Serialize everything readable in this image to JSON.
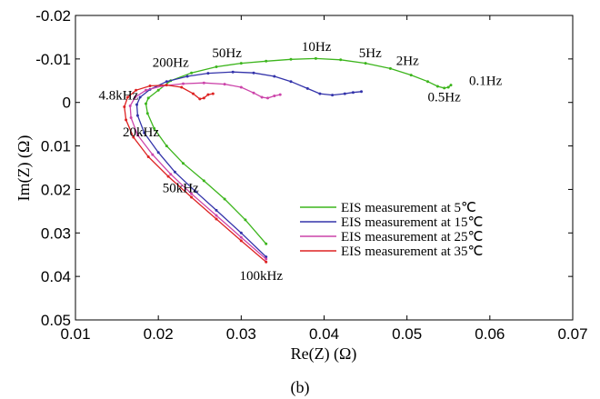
{
  "chart_data": {
    "type": "line",
    "caption": "(b)",
    "xlabel": "Re(Z) (Ω)",
    "ylabel": "Im(Z) (Ω)",
    "xlim": [
      0.01,
      0.07
    ],
    "ylim": [
      -0.02,
      0.05
    ],
    "y_reversed": true,
    "grid": false,
    "legend_position": "lower-right inside",
    "xticks": [
      "0.01",
      "0.02",
      "0.03",
      "0.04",
      "0.05",
      "0.06",
      "0.07"
    ],
    "yticks": [
      "-0.02",
      "-0.01",
      "0",
      "0.01",
      "0.02",
      "0.03",
      "0.04",
      "0.05"
    ],
    "series": [
      {
        "name": "EIS measurement at 5℃",
        "color": "#3cb51c",
        "points": [
          [
            0.033,
            0.0325
          ],
          [
            0.0305,
            0.027
          ],
          [
            0.028,
            0.0222
          ],
          [
            0.0255,
            0.018
          ],
          [
            0.023,
            0.014
          ],
          [
            0.021,
            0.01
          ],
          [
            0.0195,
            0.006
          ],
          [
            0.0187,
            0.0025
          ],
          [
            0.0185,
            0.0003
          ],
          [
            0.0188,
            -0.001
          ],
          [
            0.02,
            -0.0028
          ],
          [
            0.0215,
            -0.005
          ],
          [
            0.024,
            -0.0068
          ],
          [
            0.027,
            -0.0082
          ],
          [
            0.03,
            -0.009
          ],
          [
            0.033,
            -0.0095
          ],
          [
            0.036,
            -0.0099
          ],
          [
            0.039,
            -0.0101
          ],
          [
            0.042,
            -0.0098
          ],
          [
            0.045,
            -0.009
          ],
          [
            0.048,
            -0.0078
          ],
          [
            0.0505,
            -0.0063
          ],
          [
            0.0525,
            -0.0048
          ],
          [
            0.0537,
            -0.0037
          ],
          [
            0.0545,
            -0.0033
          ],
          [
            0.055,
            -0.0035
          ],
          [
            0.0553,
            -0.004
          ]
        ]
      },
      {
        "name": "EIS measurement at 15℃",
        "color": "#3333aa",
        "points": [
          [
            0.033,
            0.0355
          ],
          [
            0.03,
            0.03
          ],
          [
            0.027,
            0.0248
          ],
          [
            0.0245,
            0.0205
          ],
          [
            0.022,
            0.016
          ],
          [
            0.02,
            0.0115
          ],
          [
            0.0183,
            0.007
          ],
          [
            0.0175,
            0.003
          ],
          [
            0.0174,
            0.0005
          ],
          [
            0.0178,
            -0.0012
          ],
          [
            0.019,
            -0.003
          ],
          [
            0.021,
            -0.0048
          ],
          [
            0.0235,
            -0.006
          ],
          [
            0.026,
            -0.0067
          ],
          [
            0.029,
            -0.007
          ],
          [
            0.0315,
            -0.0068
          ],
          [
            0.034,
            -0.006
          ],
          [
            0.036,
            -0.0048
          ],
          [
            0.038,
            -0.0032
          ],
          [
            0.0395,
            -0.002
          ],
          [
            0.041,
            -0.0017
          ],
          [
            0.0425,
            -0.002
          ],
          [
            0.0435,
            -0.0023
          ],
          [
            0.0445,
            -0.0025
          ]
        ]
      },
      {
        "name": "EIS measurement at 25℃",
        "color": "#cc44aa",
        "points": [
          [
            0.033,
            0.036
          ],
          [
            0.03,
            0.031
          ],
          [
            0.027,
            0.026
          ],
          [
            0.024,
            0.021
          ],
          [
            0.0215,
            0.0165
          ],
          [
            0.0193,
            0.012
          ],
          [
            0.0175,
            0.0075
          ],
          [
            0.0167,
            0.0035
          ],
          [
            0.0166,
            0.0008
          ],
          [
            0.0172,
            -0.0012
          ],
          [
            0.0185,
            -0.0028
          ],
          [
            0.0205,
            -0.0038
          ],
          [
            0.023,
            -0.0043
          ],
          [
            0.0255,
            -0.0045
          ],
          [
            0.028,
            -0.0042
          ],
          [
            0.03,
            -0.0035
          ],
          [
            0.0315,
            -0.0022
          ],
          [
            0.0325,
            -0.0012
          ],
          [
            0.0332,
            -0.001
          ],
          [
            0.034,
            -0.0015
          ],
          [
            0.0347,
            -0.0018
          ]
        ]
      },
      {
        "name": "EIS measurement at 35℃",
        "color": "#dd2222",
        "points": [
          [
            0.033,
            0.0367
          ],
          [
            0.03,
            0.0318
          ],
          [
            0.027,
            0.0268
          ],
          [
            0.024,
            0.0218
          ],
          [
            0.0212,
            0.017
          ],
          [
            0.0188,
            0.0125
          ],
          [
            0.017,
            0.008
          ],
          [
            0.0161,
            0.004
          ],
          [
            0.0159,
            0.001
          ],
          [
            0.0163,
            -0.0012
          ],
          [
            0.0173,
            -0.0028
          ],
          [
            0.019,
            -0.0038
          ],
          [
            0.021,
            -0.004
          ],
          [
            0.0228,
            -0.0035
          ],
          [
            0.0242,
            -0.002
          ],
          [
            0.025,
            -0.0008
          ],
          [
            0.0255,
            -0.001
          ],
          [
            0.026,
            -0.0018
          ],
          [
            0.0266,
            -0.002
          ]
        ]
      }
    ],
    "annotations": [
      {
        "text": "10Hz",
        "x": 0.0373,
        "y": -0.0118
      },
      {
        "text": "50Hz",
        "x": 0.0265,
        "y": -0.0104
      },
      {
        "text": "5Hz",
        "x": 0.0442,
        "y": -0.0104
      },
      {
        "text": "2Hz",
        "x": 0.0487,
        "y": -0.0086
      },
      {
        "text": "200Hz",
        "x": 0.0193,
        "y": -0.0082
      },
      {
        "text": "0.1Hz",
        "x": 0.0575,
        "y": -0.004
      },
      {
        "text": "0.5Hz",
        "x": 0.0525,
        "y": -0.0003
      },
      {
        "text": "4.8kHz",
        "x": 0.0128,
        "y": -0.0007
      },
      {
        "text": "20kHz",
        "x": 0.0157,
        "y": 0.0078
      },
      {
        "text": "50kHz",
        "x": 0.0205,
        "y": 0.0206
      },
      {
        "text": "100kHz",
        "x": 0.0298,
        "y": 0.0408
      }
    ]
  }
}
